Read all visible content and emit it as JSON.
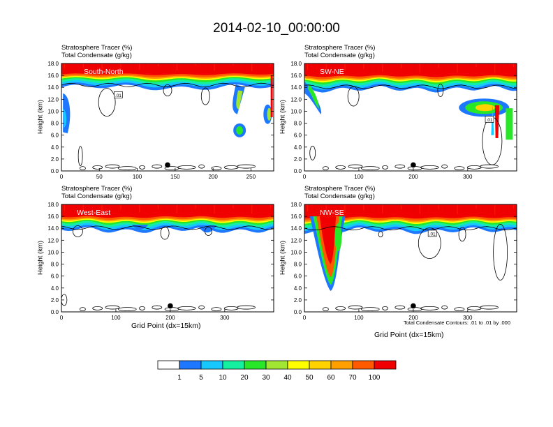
{
  "title": "2014-02-10_00:00:00",
  "colorbar": {
    "colors": [
      "#ffffff",
      "#1e78ff",
      "#17c8ff",
      "#14f0a0",
      "#28e628",
      "#a0e632",
      "#ffff00",
      "#ffd200",
      "#ffa000",
      "#ff5a00",
      "#f00000"
    ],
    "labels": [
      "1",
      "5",
      "10",
      "20",
      "30",
      "40",
      "50",
      "60",
      "70",
      "100"
    ]
  },
  "footnote": "Total Condensate Contours: .01 to .01 by .000",
  "chart_data": [
    {
      "type": "contour-cross-section",
      "panel_label": "South-North",
      "header_line1": "Stratosphere Tracer   (%)",
      "header_line2": "Total Condensate   (g/kg)",
      "ylabel": "Height (km)",
      "xlabel": "",
      "xlim": [
        0,
        280
      ],
      "ylim": [
        0,
        18
      ],
      "xticks": [
        "0",
        "50",
        "100",
        "150",
        "200",
        "250"
      ],
      "xtick_values": [
        0,
        50,
        100,
        150,
        200,
        250
      ],
      "yticks": [
        "0.0",
        "2.0",
        "4.0",
        "6.0",
        "8.0",
        "10.0",
        "12.0",
        "14.0",
        "16.0",
        "18.0"
      ],
      "tracer_top_km": 16.3,
      "marker": {
        "x": 140,
        "y": 1.0
      },
      "contour_label": ".01"
    },
    {
      "type": "contour-cross-section",
      "panel_label": "SW-NE",
      "header_line1": "Stratosphere Tracer   (%)",
      "header_line2": "Total Condensate   (g/kg)",
      "ylabel": "Height (km)",
      "xlabel": "",
      "xlim": [
        0,
        390
      ],
      "ylim": [
        0,
        18
      ],
      "xticks": [
        "0",
        "100",
        "200",
        "300"
      ],
      "xtick_values": [
        0,
        100,
        200,
        300
      ],
      "yticks": [
        "0.0",
        "2.0",
        "4.0",
        "6.0",
        "8.0",
        "10.0",
        "12.0",
        "14.0",
        "16.0",
        "18.0"
      ],
      "tracer_top_km": 16.0,
      "marker": {
        "x": 200,
        "y": 1.0
      },
      "contour_label": ".01"
    },
    {
      "type": "contour-cross-section",
      "panel_label": "West-East",
      "header_line1": "Stratosphere Tracer   (%)",
      "header_line2": "Total Condensate   (g/kg)",
      "ylabel": "Height (km)",
      "xlabel": "Grid Point (dx=15km)",
      "xlim": [
        0,
        390
      ],
      "ylim": [
        0,
        18
      ],
      "xticks": [
        "0",
        "100",
        "200",
        "300"
      ],
      "xtick_values": [
        0,
        100,
        200,
        300
      ],
      "yticks": [
        "0.0",
        "2.0",
        "4.0",
        "6.0",
        "8.0",
        "10.0",
        "12.0",
        "14.0",
        "16.0",
        "18.0"
      ],
      "tracer_top_km": 16.0,
      "marker": {
        "x": 200,
        "y": 1.0
      },
      "contour_label": ""
    },
    {
      "type": "contour-cross-section",
      "panel_label": "NW-SE",
      "header_line1": "Stratosphere Tracer   (%)",
      "header_line2": "Total Condensate   (g/kg)",
      "ylabel": "Height (km)",
      "xlabel": "Grid Point (dx=15km)",
      "xlim": [
        0,
        390
      ],
      "ylim": [
        0,
        18
      ],
      "xticks": [
        "0",
        "100",
        "200",
        "300"
      ],
      "xtick_values": [
        0,
        100,
        200,
        300
      ],
      "yticks": [
        "0.0",
        "2.0",
        "4.0",
        "6.0",
        "8.0",
        "10.0",
        "12.0",
        "14.0",
        "16.0",
        "18.0"
      ],
      "tracer_top_km": 15.9,
      "marker": {
        "x": 200,
        "y": 1.0
      },
      "contour_label": ".01"
    }
  ]
}
